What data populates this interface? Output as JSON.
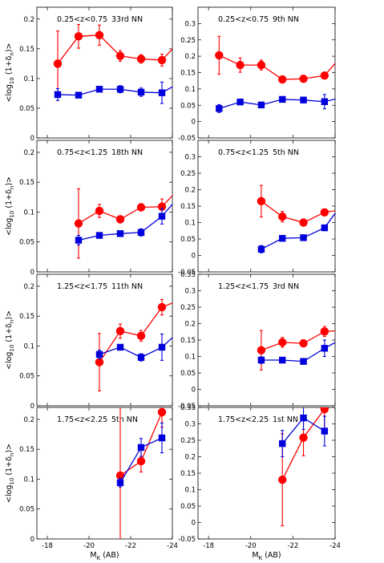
{
  "figure": {
    "ylabel_left": "<log",
    "ylabel_sub1": "10",
    "ylabel_mid": " (1+δ",
    "ylabel_sub2": "n",
    "ylabel_end": ")>",
    "xlabel_main": "M",
    "xlabel_sub": "K",
    "xlabel_unit": " (AB)"
  },
  "colors": {
    "red": "#ff0000",
    "blue": "#0000dd"
  },
  "chart_data": [
    {
      "type": "line",
      "z_label": "0.25<z<0.75",
      "nn_label": "33rd NN",
      "xlim": [
        -17.5,
        -24
      ],
      "ylim": [
        0,
        0.22
      ],
      "yticks": [
        0,
        0.05,
        0.1,
        0.15,
        0.2
      ],
      "yticklabels": [
        "0",
        "0.05",
        "0.1",
        "0.15",
        "0.2"
      ],
      "xticks": [
        -18,
        -20,
        -22,
        -24
      ],
      "xticklabels": [],
      "series": [
        {
          "color": "red",
          "marker": "circle",
          "x": [
            -18.5,
            -19.5,
            -20.5,
            -21.5,
            -22.5,
            -23.5,
            -24.5
          ],
          "y": [
            0.125,
            0.171,
            0.173,
            0.138,
            0.133,
            0.131,
            0.168
          ],
          "err": [
            0.055,
            0.02,
            0.017,
            0.009,
            0.007,
            0.01,
            0.038
          ]
        },
        {
          "color": "blue",
          "marker": "square",
          "x": [
            -18.5,
            -19.5,
            -20.5,
            -21.5,
            -22.5,
            -23.5,
            -24.5
          ],
          "y": [
            0.073,
            0.072,
            0.082,
            0.082,
            0.077,
            0.076,
            0.096
          ],
          "err": [
            0.01,
            0.004,
            0.004,
            0.006,
            0.007,
            0.018,
            0.004
          ]
        }
      ]
    },
    {
      "type": "line",
      "z_label": "0.25<z<0.75",
      "nn_label": "9th NN",
      "xlim": [
        -17.5,
        -24
      ],
      "ylim": [
        -0.05,
        0.35
      ],
      "yticks": [
        -0.05,
        0,
        0.05,
        0.1,
        0.15,
        0.2,
        0.25,
        0.3
      ],
      "yticklabels": [
        "-0.05",
        "0",
        "0.05",
        "0.1",
        "0.15",
        "0.2",
        "0.25",
        "0.3"
      ],
      "xticks": [
        -18,
        -20,
        -22,
        -24
      ],
      "xticklabels": [],
      "series": [
        {
          "color": "red",
          "marker": "circle",
          "x": [
            -18.5,
            -19.5,
            -20.5,
            -21.5,
            -22.5,
            -23.5,
            -24.5
          ],
          "y": [
            0.203,
            0.173,
            0.173,
            0.129,
            0.131,
            0.141,
            0.215
          ],
          "err": [
            0.058,
            0.022,
            0.015,
            0.008,
            0.006,
            0.008,
            0.033
          ]
        },
        {
          "color": "blue",
          "marker": "square",
          "x": [
            -18.5,
            -19.5,
            -20.5,
            -21.5,
            -22.5,
            -23.5,
            -24.5
          ],
          "y": [
            0.04,
            0.06,
            0.051,
            0.068,
            0.066,
            0.061,
            0.077
          ],
          "err": [
            0.012,
            0.006,
            0.006,
            0.007,
            0.008,
            0.022,
            0.09
          ]
        }
      ]
    },
    {
      "type": "line",
      "z_label": "0.75<z<1.25",
      "nn_label": "18th NN",
      "xlim": [
        -17.5,
        -24
      ],
      "ylim": [
        0,
        0.22
      ],
      "yticks": [
        0,
        0.05,
        0.1,
        0.15,
        0.2
      ],
      "yticklabels": [
        "0",
        "0.05",
        "0.1",
        "0.15",
        "0.2"
      ],
      "xticks": [
        -18,
        -20,
        -22,
        -24
      ],
      "xticklabels": [],
      "series": [
        {
          "color": "red",
          "marker": "circle",
          "x": [
            -19.5,
            -20.5,
            -21.5,
            -22.5,
            -23.5,
            -24.5
          ],
          "y": [
            0.081,
            0.102,
            0.088,
            0.108,
            0.109,
            0.146
          ],
          "err": [
            0.058,
            0.011,
            0.006,
            0.006,
            0.013,
            0.023
          ]
        },
        {
          "color": "blue",
          "marker": "square",
          "x": [
            -19.5,
            -20.5,
            -21.5,
            -22.5,
            -23.5,
            -24.5
          ],
          "y": [
            0.053,
            0.061,
            0.064,
            0.066,
            0.093,
            0.133
          ],
          "err": [
            0.008,
            0.003,
            0.003,
            0.006,
            0.013,
            0.029
          ]
        }
      ]
    },
    {
      "type": "line",
      "z_label": "0.75<z<1.25",
      "nn_label": "5th NN",
      "xlim": [
        -17.5,
        -24
      ],
      "ylim": [
        -0.05,
        0.35
      ],
      "yticks": [
        -0.05,
        0,
        0.05,
        0.1,
        0.15,
        0.2,
        0.25,
        0.3
      ],
      "yticklabels": [
        "-0.05",
        "0",
        "0.05",
        "0.1",
        "0.15",
        "0.2",
        "0.25",
        "0.3"
      ],
      "xticks": [
        -18,
        -20,
        -22,
        -24
      ],
      "xticklabels": [],
      "series": [
        {
          "color": "red",
          "marker": "circle",
          "x": [
            -20.5,
            -21.5,
            -22.5,
            -23.5,
            -24.5
          ],
          "y": [
            0.165,
            0.118,
            0.1,
            0.131,
            0.141
          ],
          "err": [
            0.048,
            0.016,
            0.009,
            0.007,
            0.015
          ]
        },
        {
          "color": "blue",
          "marker": "square",
          "x": [
            -20.5,
            -21.5,
            -22.5,
            -23.5,
            -24.5
          ],
          "y": [
            0.019,
            0.052,
            0.054,
            0.084,
            0.172
          ],
          "err": [
            0.011,
            0.006,
            0.005,
            0.007,
            0.03
          ]
        }
      ]
    },
    {
      "type": "line",
      "z_label": "1.25<z<1.75",
      "nn_label": "11th NN",
      "xlim": [
        -17.5,
        -24
      ],
      "ylim": [
        0,
        0.22
      ],
      "yticks": [
        0,
        0.05,
        0.1,
        0.15,
        0.2
      ],
      "yticklabels": [
        "0",
        "0.05",
        "0.1",
        "0.15",
        "0.2"
      ],
      "xticks": [
        -18,
        -20,
        -22,
        -24
      ],
      "xticklabels": [],
      "series": [
        {
          "color": "red",
          "marker": "circle",
          "x": [
            -20.5,
            -21.5,
            -22.5,
            -23.5,
            -24.5
          ],
          "y": [
            0.073,
            0.125,
            0.117,
            0.165,
            0.179
          ],
          "err": [
            0.048,
            0.012,
            0.009,
            0.013,
            0.02
          ]
        },
        {
          "color": "blue",
          "marker": "square",
          "x": [
            -20.5,
            -21.5,
            -22.5,
            -23.5,
            -24.5
          ],
          "y": [
            0.086,
            0.098,
            0.081,
            0.098,
            0.13
          ],
          "err": [
            0.007,
            0.004,
            0.006,
            0.022,
            0.025
          ]
        }
      ]
    },
    {
      "type": "line",
      "z_label": "1.25<z<1.75",
      "nn_label": "3rd NN",
      "xlim": [
        -17.5,
        -24
      ],
      "ylim": [
        -0.05,
        0.35
      ],
      "yticks": [
        -0.05,
        0,
        0.05,
        0.1,
        0.15,
        0.2,
        0.25,
        0.3,
        0.35
      ],
      "yticklabels": [
        "-0.05",
        "0",
        "0.05",
        "0.1",
        "0.15",
        "0.2",
        "0.25",
        "0.3",
        "0.35"
      ],
      "xticks": [
        -18,
        -20,
        -22,
        -24
      ],
      "xticklabels": [],
      "series": [
        {
          "color": "red",
          "marker": "circle",
          "x": [
            -20.5,
            -21.5,
            -22.5,
            -23.5,
            -24.5
          ],
          "y": [
            0.119,
            0.143,
            0.14,
            0.176,
            0.18
          ],
          "err": [
            0.06,
            0.015,
            0.01,
            0.015,
            0.02
          ]
        },
        {
          "color": "blue",
          "marker": "square",
          "x": [
            -20.5,
            -21.5,
            -22.5,
            -23.5,
            -24.5
          ],
          "y": [
            0.089,
            0.089,
            0.085,
            0.125,
            0.16
          ],
          "err": [
            0.01,
            0.005,
            0.007,
            0.025,
            0.03
          ]
        }
      ]
    },
    {
      "type": "line",
      "z_label": "1.75<z<2.25",
      "nn_label": "5th NN",
      "xlim": [
        -17.5,
        -24
      ],
      "ylim": [
        0,
        0.22
      ],
      "yticks": [
        0,
        0.05,
        0.1,
        0.15,
        0.2
      ],
      "yticklabels": [
        "0",
        "0.05",
        "0.1",
        "0.15",
        "0.2"
      ],
      "xticks": [
        -18,
        -20,
        -22,
        -24
      ],
      "xticklabels": [
        "-18",
        "-20",
        "-22",
        "-24"
      ],
      "series": [
        {
          "color": "red",
          "marker": "circle",
          "x": [
            -21.5,
            -22.5,
            -23.5
          ],
          "y": [
            0.106,
            0.13,
            0.212
          ],
          "err": [
            0.115,
            0.018,
            0.025
          ]
        },
        {
          "color": "blue",
          "marker": "square",
          "x": [
            -21.5,
            -22.5,
            -23.5
          ],
          "y": [
            0.094,
            0.153,
            0.169
          ],
          "err": [
            0.007,
            0.015,
            0.025
          ]
        }
      ]
    },
    {
      "type": "line",
      "z_label": "1.75<z<2.25",
      "nn_label": "1st NN",
      "xlim": [
        -17.5,
        -24
      ],
      "ylim": [
        -0.05,
        0.35
      ],
      "yticks": [
        -0.05,
        0,
        0.05,
        0.1,
        0.15,
        0.2,
        0.25,
        0.3,
        0.35
      ],
      "yticklabels": [
        "-0.05",
        "0",
        "0.05",
        "0.1",
        "0.15",
        "0.2",
        "0.25",
        "0.3",
        "0.35"
      ],
      "xticks": [
        -18,
        -20,
        -22,
        -24
      ],
      "xticklabels": [
        "-18",
        "-20",
        "-22",
        "-24"
      ],
      "series": [
        {
          "color": "red",
          "marker": "circle",
          "x": [
            -21.5,
            -22.5,
            -23.5
          ],
          "y": [
            0.13,
            0.258,
            0.345
          ],
          "err": [
            0.14,
            0.055,
            0.06
          ]
        },
        {
          "color": "blue",
          "marker": "square",
          "x": [
            -21.5,
            -22.5,
            -23.5
          ],
          "y": [
            0.24,
            0.318,
            0.278
          ],
          "err": [
            0.04,
            0.035,
            0.045
          ]
        }
      ]
    }
  ]
}
